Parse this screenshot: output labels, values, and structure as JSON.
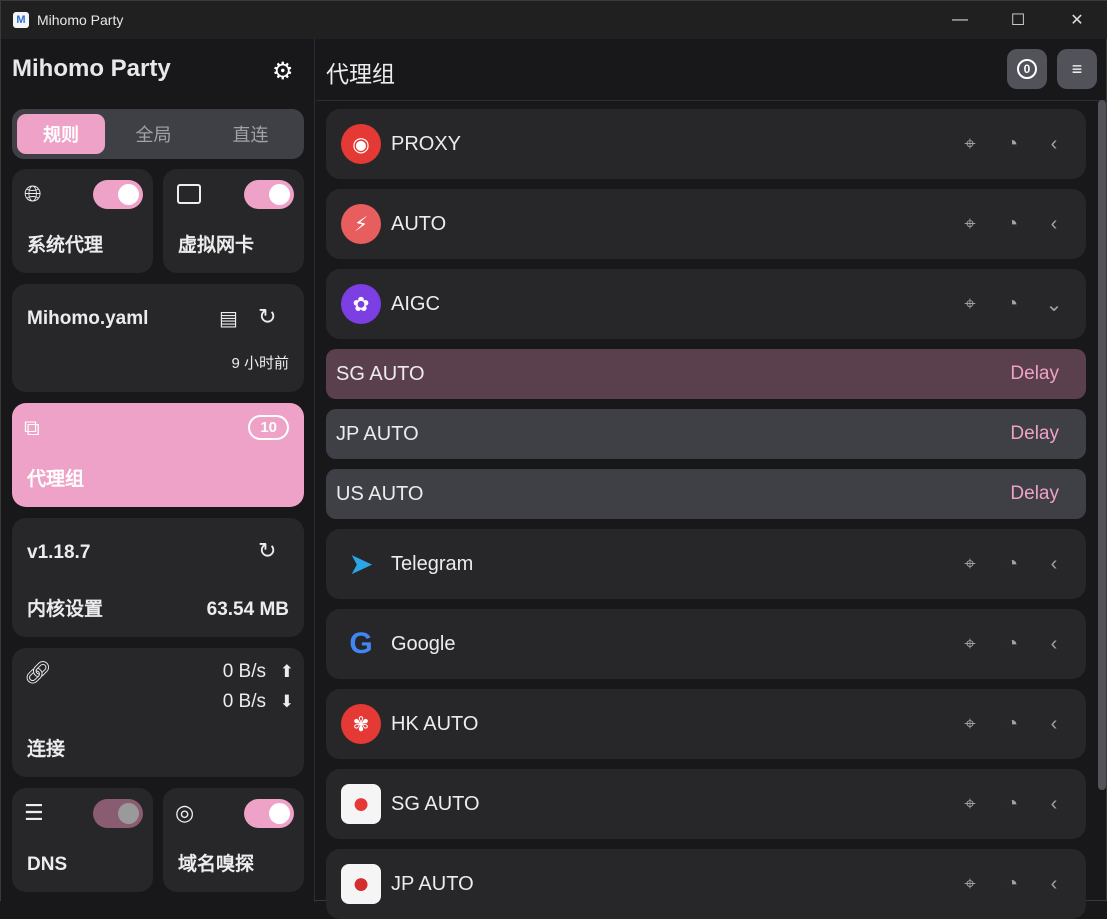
{
  "window": {
    "title": "Mihomo Party",
    "minimize": "—",
    "maximize": "☐",
    "close": "✕"
  },
  "sidebar": {
    "brand": "Mihomo Party",
    "modes": [
      "规则",
      "全局",
      "直连"
    ],
    "sysproxy": {
      "label": "系统代理",
      "on": true
    },
    "tun": {
      "label": "虚拟网卡",
      "on": true
    },
    "profile": {
      "name": "Mihomo.yaml",
      "updated": "9 小时前"
    },
    "proxy_groups": {
      "label": "代理组",
      "count": "10"
    },
    "core": {
      "version": "v1.18.7",
      "label": "内核设置",
      "memory": "63.54 MB"
    },
    "connections": {
      "label": "连接",
      "up": "0 B/s",
      "down": "0 B/s"
    },
    "dns": {
      "label": "DNS",
      "on": true
    },
    "sniffer": {
      "label": "域名嗅探",
      "on": true
    }
  },
  "main": {
    "title": "代理组",
    "groups": [
      {
        "name": "PROXY",
        "expanded": false
      },
      {
        "name": "AUTO",
        "expanded": false
      },
      {
        "name": "AIGC",
        "expanded": true
      },
      {
        "name": "Telegram",
        "expanded": false
      },
      {
        "name": "Google",
        "expanded": false
      },
      {
        "name": "HK AUTO",
        "expanded": false
      },
      {
        "name": "SG AUTO",
        "expanded": false
      },
      {
        "name": "JP AUTO",
        "expanded": false
      }
    ],
    "aigc_items": [
      {
        "name": "SG AUTO",
        "delay": "Delay",
        "selected": true
      },
      {
        "name": "JP AUTO",
        "delay": "Delay",
        "selected": false
      },
      {
        "name": "US AUTO",
        "delay": "Delay",
        "selected": false
      }
    ]
  },
  "colors": {
    "accent": "#eea2c7",
    "card": "#27272a",
    "bg": "#18181b",
    "selected": "#5a3f4d"
  }
}
